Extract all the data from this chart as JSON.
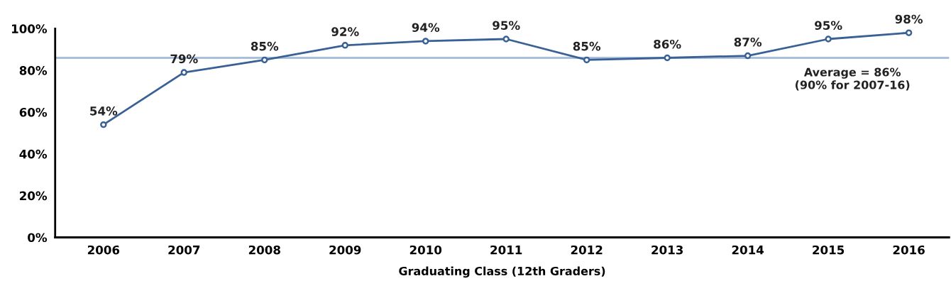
{
  "chart_data": {
    "type": "line",
    "xlabel": "Graduating Class (12th Graders)",
    "categories": [
      "2006",
      "2007",
      "2008",
      "2009",
      "2010",
      "2011",
      "2012",
      "2013",
      "2014",
      "2015",
      "2016"
    ],
    "series": [
      {
        "color": "#3a6195",
        "values": [
          54,
          79,
          85,
          92,
          94,
          95,
          85,
          86,
          87,
          95,
          98
        ],
        "value_labels": [
          "54%",
          "79%",
          "85%",
          "92%",
          "94%",
          "95%",
          "85%",
          "86%",
          "87%",
          "95%",
          "98%"
        ]
      }
    ],
    "marker": "circle",
    "line_style": "solid",
    "grid": false,
    "legend": false,
    "ylim": [
      0,
      100
    ],
    "yticks": [
      {
        "value": 0,
        "label": "0%"
      },
      {
        "value": 20,
        "label": "20%"
      },
      {
        "value": 40,
        "label": "40%"
      },
      {
        "value": 60,
        "label": "60%"
      },
      {
        "value": 80,
        "label": "80%"
      },
      {
        "value": 100,
        "label": "100%"
      }
    ],
    "ref_lines": [
      {
        "axis": "y",
        "value": 86,
        "label": "Average = 86%\n(90% for 2007-16)",
        "color": "#a9bfdc",
        "line_style": "solid"
      }
    ]
  }
}
